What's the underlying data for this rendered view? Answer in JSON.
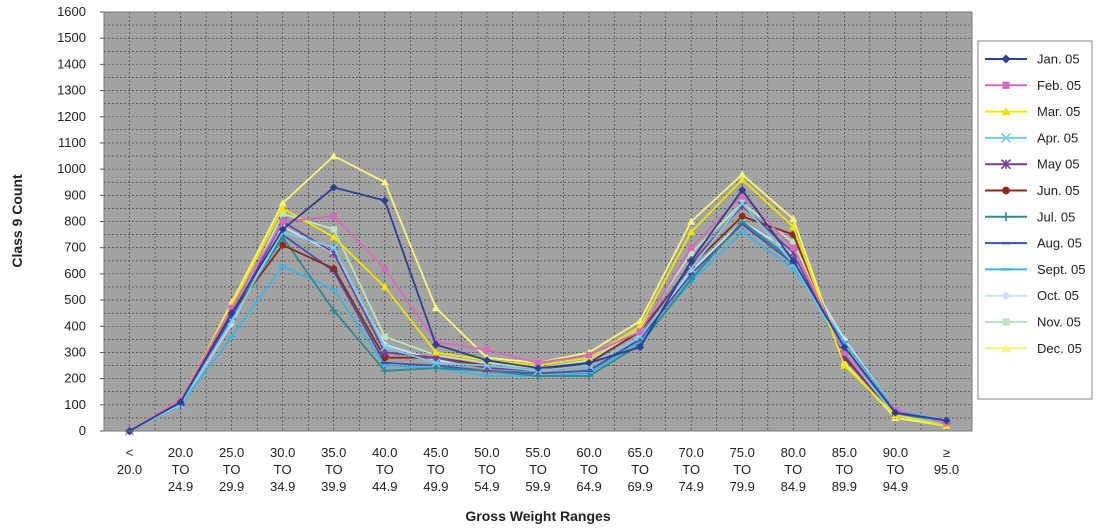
{
  "chart_data": {
    "type": "line",
    "xlabel": "Gross Weight Ranges",
    "ylabel": "Class 9 Count",
    "ylim": [
      0,
      1600
    ],
    "yticks": [
      0,
      100,
      200,
      300,
      400,
      500,
      600,
      700,
      800,
      900,
      1000,
      1100,
      1200,
      1300,
      1400,
      1500,
      1600
    ],
    "grid": true,
    "legend_position": "right",
    "categories": [
      [
        "<",
        "20.0"
      ],
      [
        "20.0",
        "TO",
        "24.9"
      ],
      [
        "25.0",
        "TO",
        "29.9"
      ],
      [
        "30.0",
        "TO",
        "34.9"
      ],
      [
        "35.0",
        "TO",
        "39.9"
      ],
      [
        "40.0",
        "TO",
        "44.9"
      ],
      [
        "45.0",
        "TO",
        "49.9"
      ],
      [
        "50.0",
        "TO",
        "54.9"
      ],
      [
        "55.0",
        "TO",
        "59.9"
      ],
      [
        "60.0",
        "TO",
        "64.9"
      ],
      [
        "65.0",
        "TO",
        "69.9"
      ],
      [
        "70.0",
        "TO",
        "74.9"
      ],
      [
        "75.0",
        "TO",
        "79.9"
      ],
      [
        "80.0",
        "TO",
        "84.9"
      ],
      [
        "85.0",
        "TO",
        "89.9"
      ],
      [
        "90.0",
        "TO",
        "94.9"
      ],
      [
        "≥",
        "95.0"
      ]
    ],
    "series": [
      {
        "name": "Jan. 05",
        "color": "#2e3f8f",
        "marker": "diamond",
        "values": [
          0,
          110,
          450,
          770,
          930,
          880,
          330,
          270,
          240,
          260,
          320,
          650,
          920,
          650,
          320,
          70,
          40
        ]
      },
      {
        "name": "Feb. 05",
        "color": "#d56bbd",
        "marker": "square",
        "values": [
          0,
          120,
          470,
          800,
          820,
          620,
          340,
          310,
          260,
          290,
          380,
          700,
          900,
          700,
          300,
          80,
          30
        ]
      },
      {
        "name": "Mar. 05",
        "color": "#f2e500",
        "marker": "triangle",
        "values": [
          0,
          120,
          480,
          850,
          740,
          550,
          300,
          270,
          250,
          280,
          400,
          760,
          960,
          780,
          250,
          60,
          20
        ]
      },
      {
        "name": "Apr. 05",
        "color": "#6fcfe8",
        "marker": "x",
        "values": [
          0,
          100,
          420,
          760,
          700,
          320,
          260,
          250,
          230,
          250,
          360,
          620,
          870,
          640,
          300,
          60,
          30
        ]
      },
      {
        "name": "May 05",
        "color": "#7a3f98",
        "marker": "star",
        "values": [
          0,
          100,
          440,
          800,
          680,
          300,
          280,
          240,
          230,
          250,
          360,
          640,
          860,
          680,
          290,
          60,
          30
        ]
      },
      {
        "name": "Jun. 05",
        "color": "#8b2b1c",
        "marker": "circle",
        "values": [
          0,
          110,
          450,
          710,
          620,
          280,
          280,
          250,
          230,
          260,
          380,
          630,
          820,
          750,
          280,
          60,
          30
        ]
      },
      {
        "name": "Jul. 05",
        "color": "#2a8a8f",
        "marker": "plus",
        "values": [
          0,
          110,
          440,
          740,
          460,
          230,
          240,
          230,
          210,
          210,
          330,
          580,
          800,
          650,
          290,
          70,
          30
        ]
      },
      {
        "name": "Aug. 05",
        "color": "#3f52b5",
        "marker": "dash",
        "values": [
          0,
          100,
          430,
          750,
          610,
          260,
          250,
          230,
          220,
          230,
          350,
          600,
          790,
          640,
          300,
          70,
          30
        ]
      },
      {
        "name": "Sept. 05",
        "color": "#3bb4e5",
        "marker": "dash",
        "values": [
          0,
          100,
          360,
          630,
          540,
          250,
          240,
          210,
          210,
          220,
          340,
          570,
          760,
          620,
          340,
          80,
          40
        ]
      },
      {
        "name": "Oct. 05",
        "color": "#c9e2f5",
        "marker": "diamond",
        "values": [
          0,
          100,
          410,
          780,
          680,
          330,
          270,
          250,
          230,
          250,
          360,
          610,
          800,
          680,
          350,
          80,
          40
        ]
      },
      {
        "name": "Nov. 05",
        "color": "#bfe3bd",
        "marker": "square",
        "values": [
          0,
          110,
          430,
          830,
          770,
          360,
          290,
          260,
          240,
          270,
          390,
          680,
          870,
          720,
          310,
          70,
          30
        ]
      },
      {
        "name": "Dec. 05",
        "color": "#fbf47a",
        "marker": "triangle",
        "values": [
          0,
          110,
          490,
          870,
          1050,
          950,
          470,
          280,
          260,
          300,
          420,
          800,
          980,
          810,
          260,
          50,
          20
        ]
      }
    ]
  }
}
